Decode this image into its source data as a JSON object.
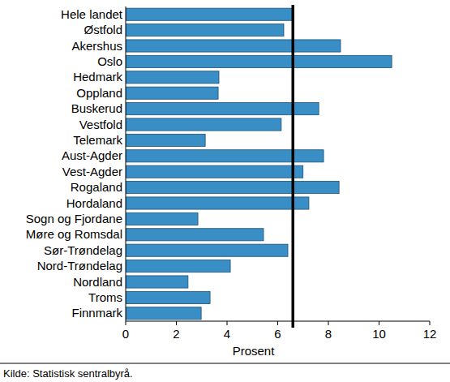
{
  "chart_data": {
    "type": "bar",
    "orientation": "horizontal",
    "x_label": "Prosent",
    "source": "Kilde: Statistisk sentralbyrå.",
    "categories": [
      "Hele landet",
      "Østfold",
      "Akershus",
      "Oslo",
      "Hedmark",
      "Oppland",
      "Buskerud",
      "Vestfold",
      "Telemark",
      "Aust-Agder",
      "Vest-Agder",
      "Rogaland",
      "Hordaland",
      "Sogn og Fjordane",
      "Møre og Romsdal",
      "Sør-Trøndelag",
      "Nord-Trøndelag",
      "Nordland",
      "Troms",
      "Finnmark"
    ],
    "values": [
      6.6,
      6.24,
      8.48,
      10.5,
      3.68,
      3.65,
      7.62,
      6.14,
      3.14,
      7.81,
      7.0,
      8.42,
      7.23,
      2.85,
      5.44,
      6.4,
      4.13,
      2.46,
      3.33,
      2.98
    ],
    "color": "#3a8ec6",
    "xlim": [
      0,
      12
    ],
    "xticks": [
      0,
      2,
      4,
      6,
      8,
      10,
      12
    ],
    "grid": false
  }
}
